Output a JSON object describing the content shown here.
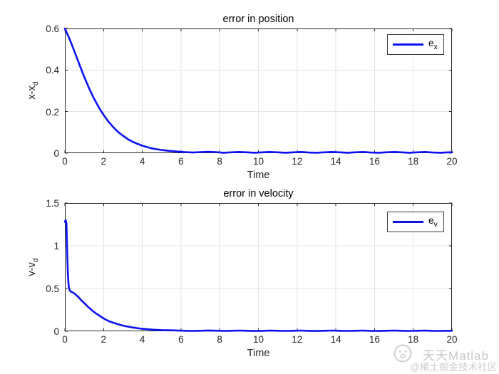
{
  "figure": {
    "background": "#ffffff",
    "line_color": "#0b12ef",
    "grid_color": "#e4e4e4",
    "axis_color": "#262626",
    "legend_border_color": "#3a3a3a",
    "watermark_color": "#c9c9c9"
  },
  "watermark": {
    "logo": "face-icon",
    "line1": "天天Matlab",
    "line2": "@稀土掘金技术社区"
  },
  "chart_data": [
    {
      "type": "line",
      "title": "error in position",
      "xlabel": "Time",
      "ylabel": "x-x_d",
      "ylabel_base": "x-x",
      "ylabel_sub": "d",
      "legend_label": "e_x",
      "legend_base": "e",
      "legend_sub": "x",
      "legend_position": "upper-right",
      "grid": true,
      "xlim": [
        0,
        20
      ],
      "ylim": [
        0,
        0.6
      ],
      "xticks": [
        0,
        2,
        4,
        6,
        8,
        10,
        12,
        14,
        16,
        18,
        20
      ],
      "yticks": [
        0,
        0.2,
        0.4,
        0.6
      ],
      "x": [
        0,
        0.25,
        0.5,
        0.75,
        1,
        1.25,
        1.5,
        1.75,
        2,
        2.25,
        2.5,
        2.75,
        3,
        3.25,
        3.5,
        3.75,
        4,
        4.25,
        4.5,
        4.75,
        5,
        5.4,
        5.8,
        6.2,
        6.6,
        7,
        7.4,
        7.8,
        8.2,
        8.6,
        9,
        9.4,
        9.8,
        10.2,
        10.6,
        11,
        11.4,
        11.8,
        12.2,
        12.6,
        13,
        13.4,
        13.8,
        14.2,
        14.6,
        15,
        15.4,
        15.8,
        16.2,
        16.6,
        17,
        17.4,
        17.8,
        18.2,
        18.6,
        19,
        19.4,
        19.8,
        20
      ],
      "y": [
        0.6,
        0.548,
        0.488,
        0.427,
        0.367,
        0.313,
        0.264,
        0.221,
        0.184,
        0.152,
        0.125,
        0.102,
        0.084,
        0.068,
        0.055,
        0.045,
        0.036,
        0.029,
        0.023,
        0.019,
        0.015,
        0.011,
        0.008,
        0.005,
        0.003,
        0.005,
        0.007,
        0.005,
        0.002,
        0.004,
        0.006,
        0.004,
        0.002,
        0.004,
        0.006,
        0.004,
        0.002,
        0.004,
        0.006,
        0.003,
        0.002,
        0.004,
        0.006,
        0.004,
        0.002,
        0.004,
        0.006,
        0.003,
        0.002,
        0.004,
        0.006,
        0.004,
        0.002,
        0.004,
        0.006,
        0.003,
        0.002,
        0.004,
        0.004
      ]
    },
    {
      "type": "line",
      "title": "error in velocity",
      "xlabel": "Time",
      "ylabel": "v-v_d",
      "ylabel_base": "v-v",
      "ylabel_sub": "d",
      "legend_label": "e_v",
      "legend_base": "e",
      "legend_sub": "v",
      "legend_position": "upper-right",
      "grid": true,
      "xlim": [
        0,
        20
      ],
      "ylim": [
        0,
        1.5
      ],
      "xticks": [
        0,
        2,
        4,
        6,
        8,
        10,
        12,
        14,
        16,
        18,
        20
      ],
      "yticks": [
        0,
        0.5,
        1,
        1.5
      ],
      "x": [
        0,
        0.04,
        0.08,
        0.1,
        0.12,
        0.15,
        0.18,
        0.2,
        0.25,
        0.3,
        0.4,
        0.5,
        0.6,
        0.7,
        0.8,
        0.9,
        1,
        1.2,
        1.4,
        1.6,
        1.8,
        2,
        2.25,
        2.5,
        2.75,
        3,
        3.25,
        3.5,
        3.75,
        4,
        4.5,
        5,
        5.4,
        5.8,
        6.2,
        6.6,
        7,
        7.4,
        7.8,
        8.2,
        8.6,
        9,
        9.4,
        9.8,
        10.2,
        10.6,
        11,
        11.4,
        11.8,
        12.2,
        12.6,
        13,
        13.4,
        13.8,
        14.2,
        14.6,
        15,
        15.4,
        15.8,
        16.2,
        16.6,
        17,
        17.4,
        17.8,
        18.2,
        18.6,
        19,
        19.4,
        19.8,
        20
      ],
      "y": [
        1.28,
        1.3,
        1.26,
        1.1,
        0.9,
        0.7,
        0.58,
        0.52,
        0.48,
        0.465,
        0.455,
        0.44,
        0.42,
        0.4,
        0.375,
        0.35,
        0.33,
        0.285,
        0.245,
        0.21,
        0.18,
        0.15,
        0.12,
        0.1,
        0.082,
        0.067,
        0.054,
        0.044,
        0.036,
        0.029,
        0.019,
        0.013,
        0.012,
        0.009,
        0.006,
        0.004,
        0.006,
        0.009,
        0.007,
        0.004,
        0.006,
        0.008,
        0.006,
        0.003,
        0.005,
        0.008,
        0.006,
        0.004,
        0.006,
        0.008,
        0.005,
        0.003,
        0.006,
        0.008,
        0.006,
        0.004,
        0.006,
        0.008,
        0.005,
        0.003,
        0.006,
        0.008,
        0.006,
        0.004,
        0.006,
        0.008,
        0.005,
        0.004,
        0.006,
        0.006
      ]
    }
  ]
}
